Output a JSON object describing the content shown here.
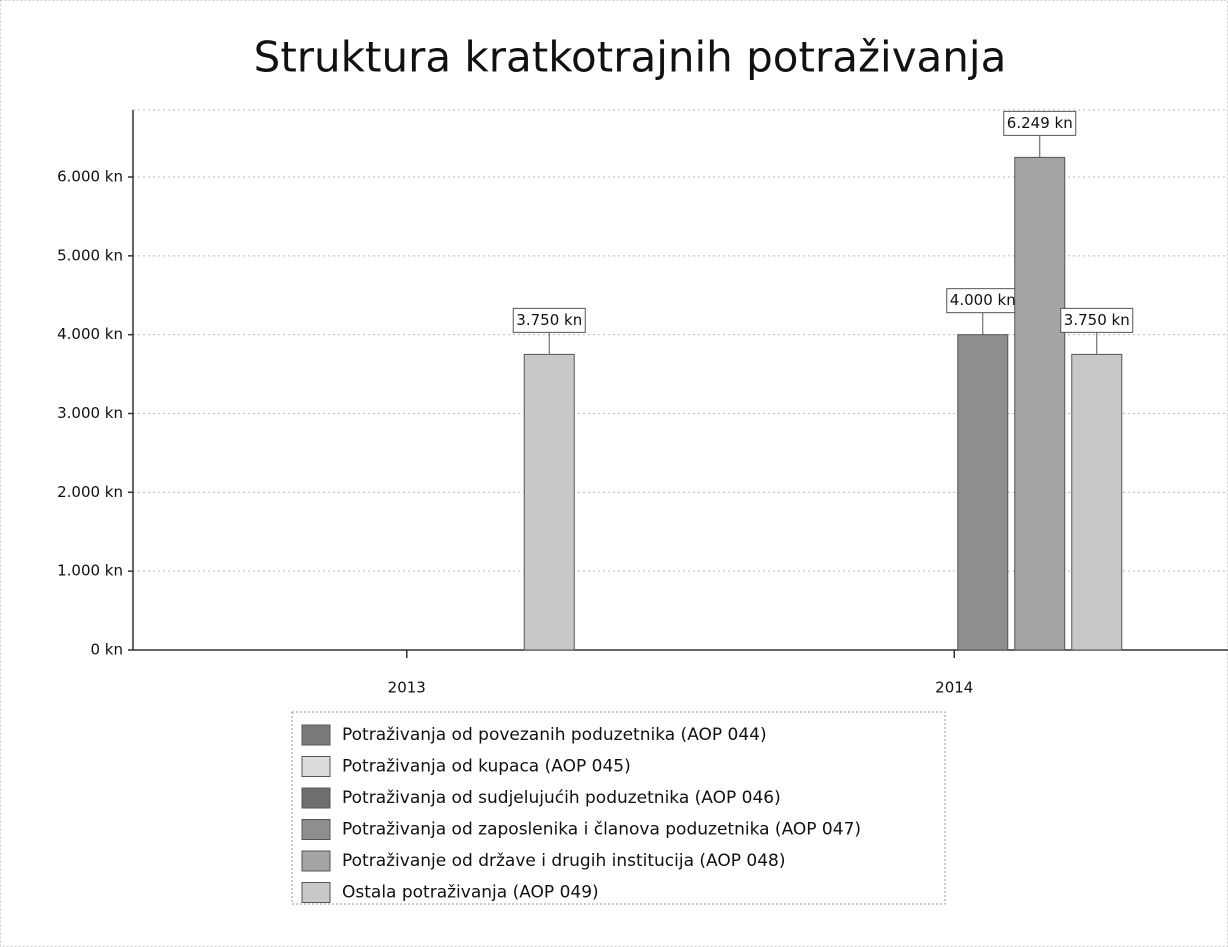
{
  "chart_data": {
    "type": "bar",
    "title": "Struktura kratkotrajnih potraživanja",
    "categories": [
      "2013",
      "2014"
    ],
    "series": [
      {
        "name": "Potraživanja od povezanih poduzetnika (AOP 044)",
        "color": "#7a7a7a",
        "values": [
          0,
          0
        ]
      },
      {
        "name": "Potraživanja od kupaca (AOP 045)",
        "color": "#dcdcdc",
        "values": [
          0,
          0
        ]
      },
      {
        "name": "Potraživanja od sudjelujućih poduzetnika (AOP 046)",
        "color": "#6e6e6e",
        "values": [
          0,
          0
        ]
      },
      {
        "name": "Potraživanja od zaposlenika i članova poduzetnika (AOP 047)",
        "color": "#8e8e8e",
        "values": [
          0,
          4000
        ],
        "value_labels": [
          null,
          "4.000 kn"
        ]
      },
      {
        "name": "Potraživanje od države i drugih institucija (AOP 048)",
        "color": "#a4a4a4",
        "values": [
          0,
          6249
        ],
        "value_labels": [
          null,
          "6.249 kn"
        ]
      },
      {
        "name": "Ostala potraživanja (AOP 049)",
        "color": "#c8c8c8",
        "values": [
          3750,
          3750
        ],
        "value_labels": [
          "3.750 kn",
          "3.750 kn"
        ]
      }
    ],
    "ylim": [
      0,
      6850
    ],
    "yticks": [
      {
        "value": 0,
        "label": "0 kn"
      },
      {
        "value": 1000,
        "label": "1.000 kn"
      },
      {
        "value": 2000,
        "label": "2.000 kn"
      },
      {
        "value": 3000,
        "label": "3.000 kn"
      },
      {
        "value": 4000,
        "label": "4.000 kn"
      },
      {
        "value": 5000,
        "label": "5.000 kn"
      },
      {
        "value": 6000,
        "label": "6.000 kn"
      }
    ],
    "grid": true
  }
}
